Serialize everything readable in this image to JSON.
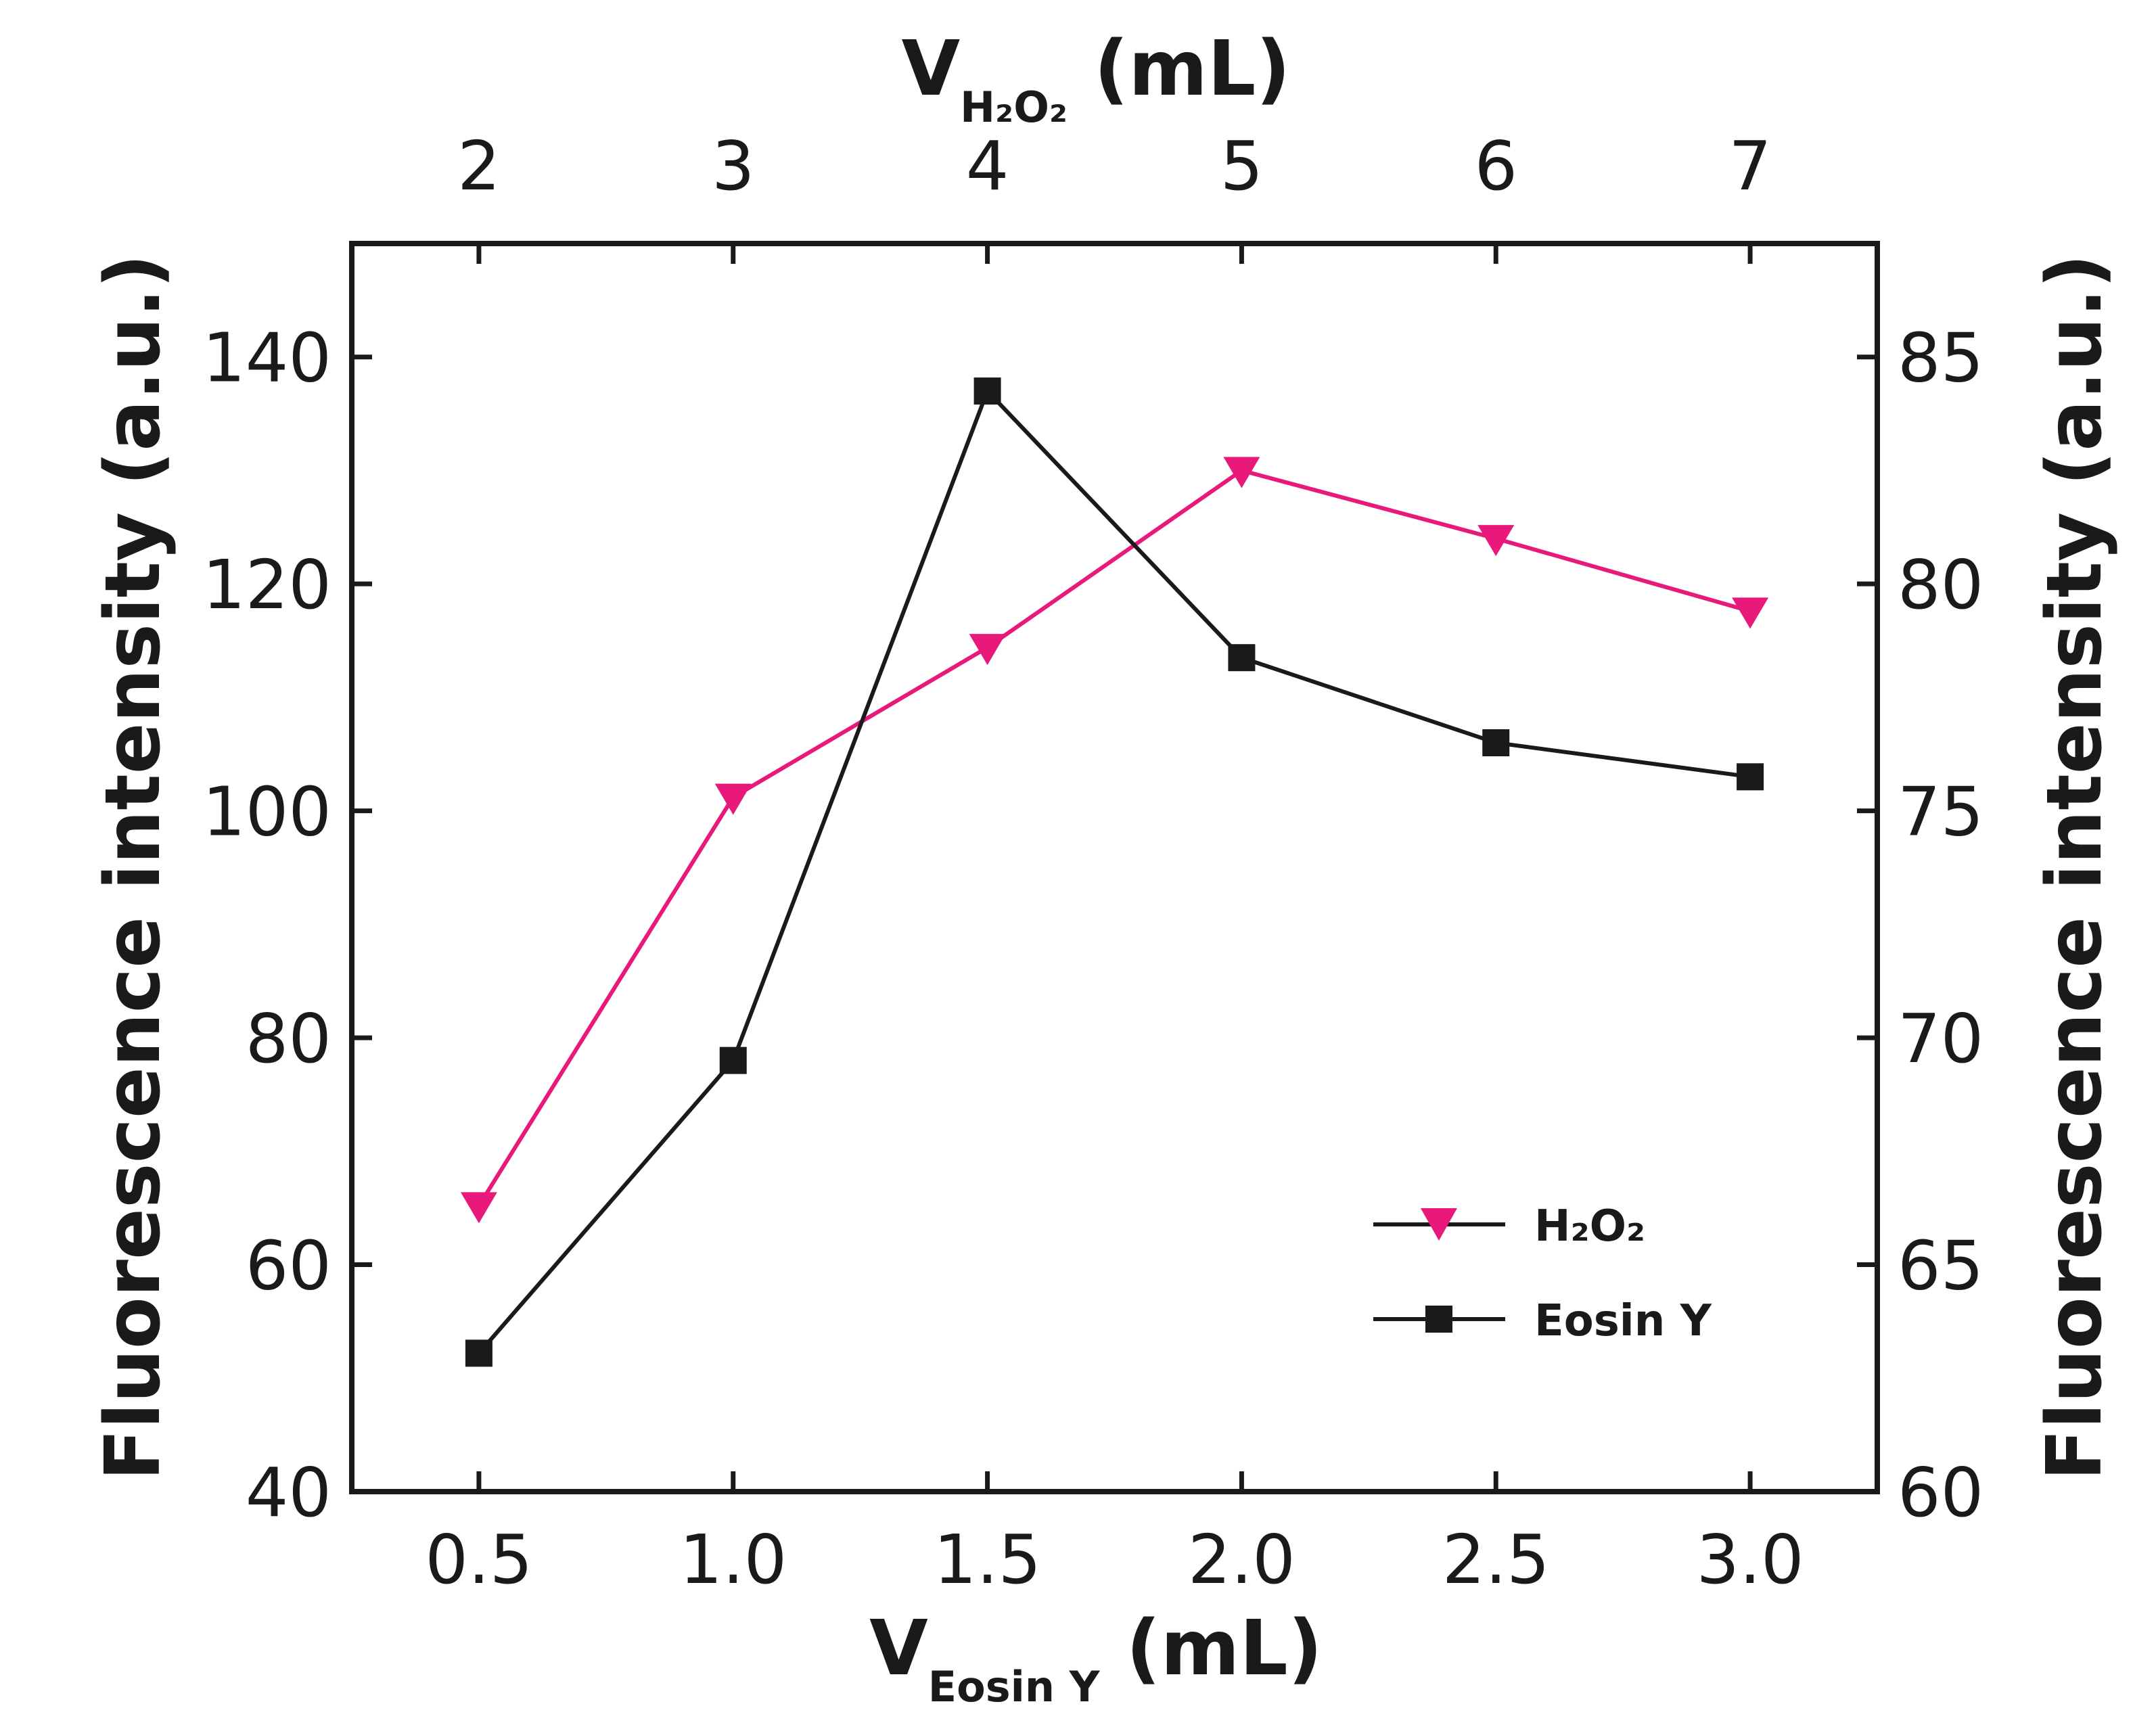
{
  "chart_data": {
    "type": "line",
    "x_bottom": {
      "label_main": "V",
      "label_sub": "Eosin Y",
      "label_unit": " (mL)",
      "range": [
        0.25,
        3.25
      ],
      "ticks": [
        0.5,
        1.0,
        1.5,
        2.0,
        2.5,
        3.0
      ],
      "tick_labels": [
        "0.5",
        "1.0",
        "1.5",
        "2.0",
        "2.5",
        "3.0"
      ]
    },
    "x_top": {
      "label_main": "V",
      "label_sub": "H₂O₂",
      "label_unit": " (mL)",
      "range": [
        1.5,
        7.5
      ],
      "ticks": [
        2,
        3,
        4,
        5,
        6,
        7
      ],
      "tick_labels": [
        "2",
        "3",
        "4",
        "5",
        "6",
        "7"
      ]
    },
    "y_left": {
      "label": "Fluorescence intensity (a.u.)",
      "range": [
        40,
        150
      ],
      "ticks": [
        40,
        60,
        80,
        100,
        120,
        140
      ],
      "tick_labels": [
        "40",
        "60",
        "80",
        "100",
        "120",
        "140"
      ]
    },
    "y_right": {
      "label": "Fluorescence intensity (a.u.)",
      "range": [
        60,
        87.5
      ],
      "ticks": [
        60,
        65,
        70,
        75,
        80,
        85
      ],
      "tick_labels": [
        "60",
        "65",
        "70",
        "75",
        "80",
        "85"
      ]
    },
    "series": [
      {
        "name": "H₂O₂",
        "color": "#e8197a",
        "marker": "triangle-down",
        "x_axis": "top",
        "y_axis": "right",
        "x": [
          2,
          3,
          4,
          5,
          6,
          7
        ],
        "y": [
          66.3,
          75.3,
          78.6,
          82.5,
          81.0,
          79.4
        ]
      },
      {
        "name": "Eosin Y",
        "color": "#1a1a1a",
        "marker": "square",
        "x_axis": "bottom",
        "y_axis": "left",
        "x": [
          0.5,
          1.0,
          1.5,
          2.0,
          2.5,
          3.0
        ],
        "y": [
          52.2,
          78.0,
          137.0,
          113.5,
          106.0,
          103.0
        ]
      }
    ],
    "legend": {
      "position": "bottom-right",
      "entries": [
        "H₂O₂",
        "Eosin Y"
      ]
    }
  }
}
